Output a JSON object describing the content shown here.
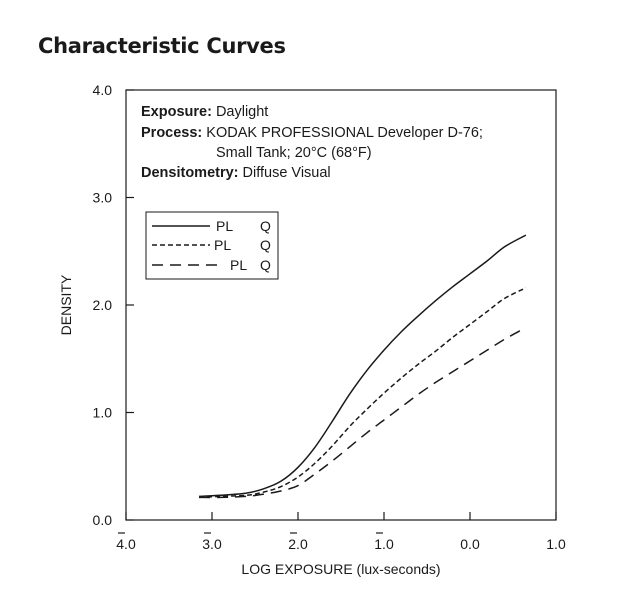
{
  "page": {
    "title": "Characteristic Curves"
  },
  "info": {
    "exposure_key": "Exposure:",
    "exposure_value": " Daylight",
    "process_key": "Process:",
    "process_value": " KODAK PROFESSIONAL Developer D-76;",
    "process_value_2": "Small Tank; 20°C (68°F)",
    "densitometry_key": "Densitometry:",
    "densitometry_value": " Diffuse Visual"
  },
  "chart_data": {
    "type": "line",
    "xlabel": "LOG EXPOSURE (lux-seconds)",
    "ylabel": "DENSITY",
    "xlim": [
      -4.0,
      1.0
    ],
    "ylim": [
      0.0,
      4.0
    ],
    "x_ticks": [
      {
        "value": -4.0,
        "label": "4.0",
        "bar": true
      },
      {
        "value": -3.0,
        "label": "3.0",
        "bar": true
      },
      {
        "value": -2.0,
        "label": "2.0",
        "bar": true
      },
      {
        "value": -1.0,
        "label": "1.0",
        "bar": true
      },
      {
        "value": 0.0,
        "label": "0.0",
        "bar": false
      },
      {
        "value": 1.0,
        "label": "1.0",
        "bar": false
      }
    ],
    "y_ticks": [
      {
        "value": 0.0,
        "label": "0.0"
      },
      {
        "value": 1.0,
        "label": "1.0"
      },
      {
        "value": 2.0,
        "label": "2.0"
      },
      {
        "value": 3.0,
        "label": "3.0"
      },
      {
        "value": 4.0,
        "label": "4.0"
      }
    ],
    "grid": false,
    "legend_position": "upper-left",
    "series": [
      {
        "name": "PL Q",
        "legend_pl": "PL",
        "legend_q": "Q",
        "style": "solid",
        "x": [
          -3.15,
          -2.9,
          -2.6,
          -2.4,
          -2.2,
          -2.0,
          -1.8,
          -1.6,
          -1.4,
          -1.2,
          -1.0,
          -0.8,
          -0.6,
          -0.4,
          -0.2,
          0.0,
          0.2,
          0.4,
          0.65
        ],
        "y": [
          0.22,
          0.23,
          0.25,
          0.29,
          0.36,
          0.49,
          0.68,
          0.92,
          1.17,
          1.39,
          1.58,
          1.75,
          1.9,
          2.04,
          2.17,
          2.29,
          2.41,
          2.54,
          2.65
        ]
      },
      {
        "name": "PL Q",
        "legend_pl": "PL",
        "legend_q": "Q",
        "style": "dashed",
        "x": [
          -3.15,
          -2.9,
          -2.6,
          -2.4,
          -2.2,
          -2.0,
          -1.8,
          -1.6,
          -1.4,
          -1.2,
          -1.0,
          -0.8,
          -0.6,
          -0.4,
          -0.2,
          0.0,
          0.2,
          0.4,
          0.65
        ],
        "y": [
          0.21,
          0.22,
          0.23,
          0.26,
          0.31,
          0.4,
          0.53,
          0.69,
          0.87,
          1.03,
          1.18,
          1.32,
          1.45,
          1.57,
          1.7,
          1.82,
          1.94,
          2.06,
          2.16
        ]
      },
      {
        "name": "PL Q",
        "legend_pl": "PL",
        "legend_q": "Q",
        "style": "longdash",
        "x": [
          -3.15,
          -2.9,
          -2.6,
          -2.4,
          -2.2,
          -2.0,
          -1.8,
          -1.6,
          -1.4,
          -1.2,
          -1.0,
          -0.8,
          -0.6,
          -0.4,
          -0.2,
          0.0,
          0.2,
          0.4,
          0.65
        ],
        "y": [
          0.21,
          0.21,
          0.22,
          0.24,
          0.27,
          0.32,
          0.43,
          0.55,
          0.68,
          0.81,
          0.93,
          1.05,
          1.17,
          1.28,
          1.38,
          1.48,
          1.58,
          1.68,
          1.79
        ]
      }
    ]
  }
}
